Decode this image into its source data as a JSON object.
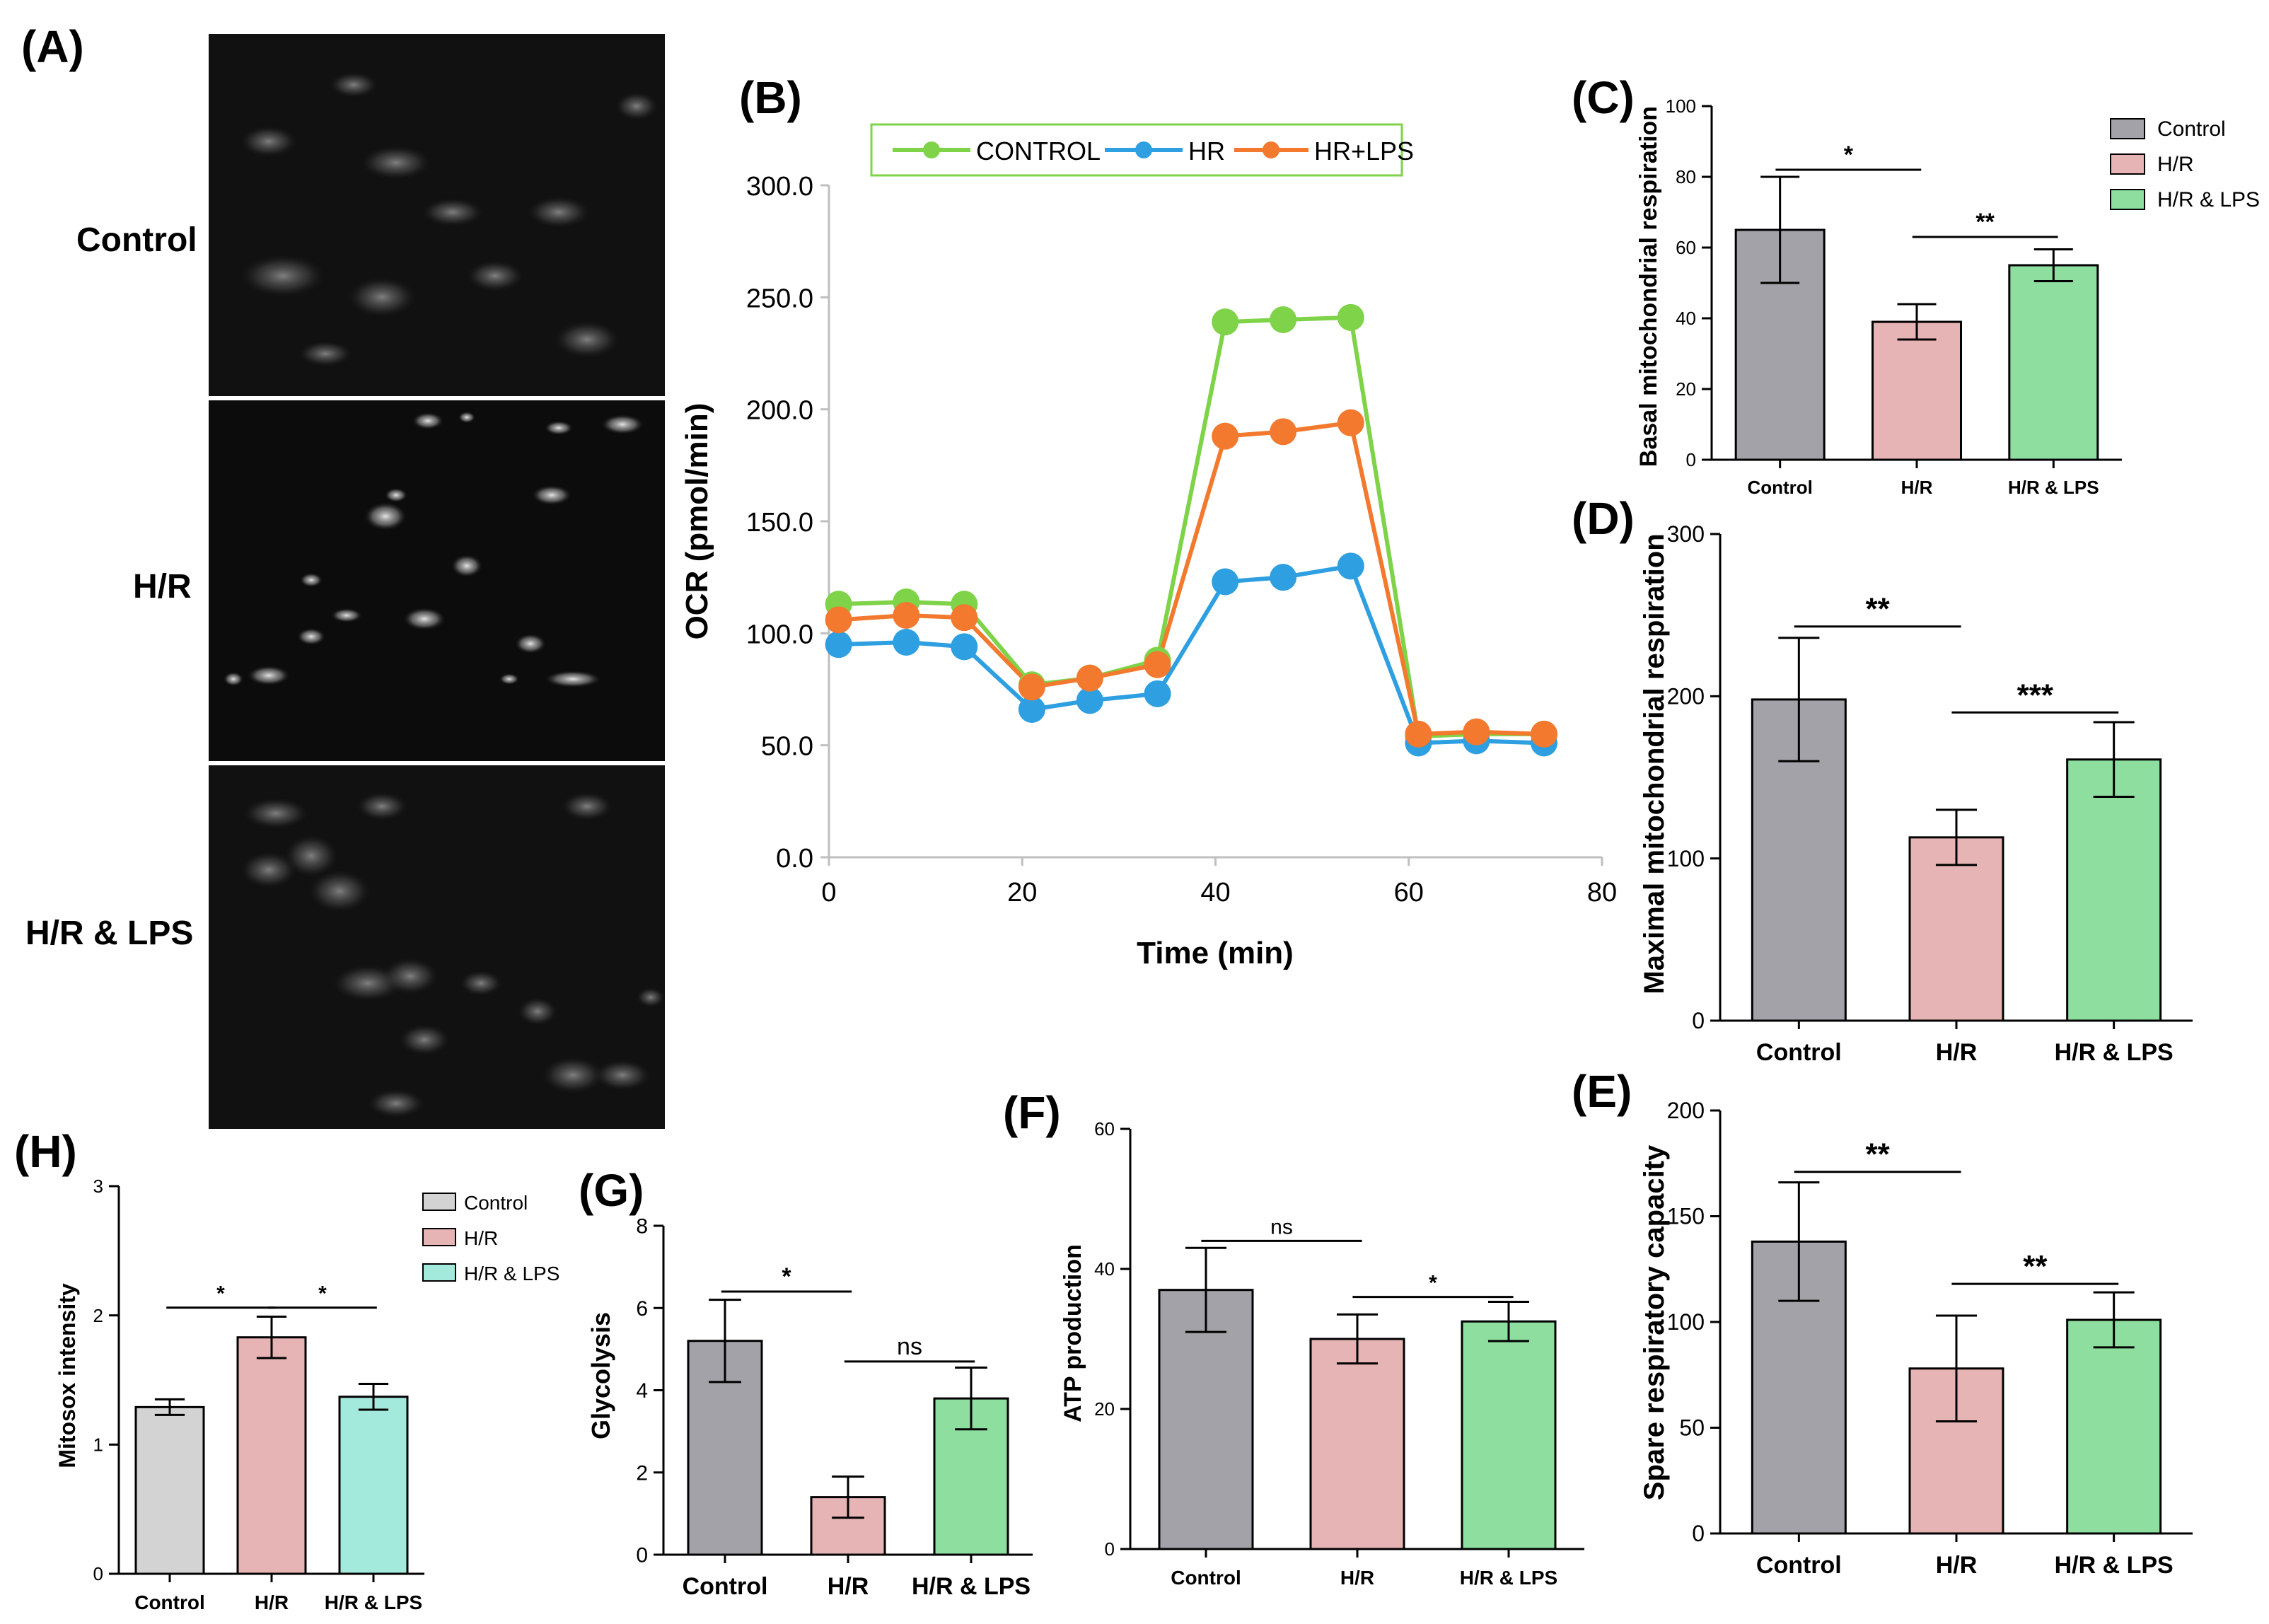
{
  "panels": {
    "a": {
      "letter": "(A)",
      "row_labels": [
        "Control",
        "H/R",
        "H/R & LPS"
      ],
      "image_desc": [
        "fluorescence micrograph - control cells",
        "fluorescence micrograph - H/R cells",
        "fluorescence micrograph - H/R & LPS cells"
      ]
    }
  },
  "chart_data": [
    {
      "id": "B",
      "letter": "(B)",
      "type": "line",
      "xlabel": "Time (min)",
      "ylabel": "OCR (pmol/min)",
      "xlim": [
        0,
        80
      ],
      "ylim": [
        0,
        300
      ],
      "xticks": [
        "0",
        "20",
        "40",
        "60",
        "80"
      ],
      "yticks": [
        "0.0",
        "50.0",
        "100.0",
        "150.0",
        "200.0",
        "250.0",
        "300.0"
      ],
      "x": [
        1,
        8,
        14,
        21,
        27,
        34,
        41,
        47,
        54,
        61,
        67,
        74
      ],
      "series": [
        {
          "name": "CONTROL",
          "color": "#7ed348",
          "values": [
            113,
            114,
            113,
            77,
            80,
            88,
            239,
            240,
            241,
            54,
            55,
            55
          ]
        },
        {
          "name": "HR",
          "color": "#2e9fe0",
          "values": [
            95,
            96,
            94,
            66,
            70,
            73,
            123,
            125,
            130,
            51,
            52,
            51
          ]
        },
        {
          "name": "HR+LPS",
          "color": "#f2792e",
          "values": [
            106,
            108,
            107,
            76,
            80,
            86,
            188,
            190,
            194,
            55,
            56,
            55
          ]
        }
      ]
    },
    {
      "id": "C",
      "letter": "(C)",
      "type": "bar",
      "ylabel": "Basal mitochondrial respiration",
      "ylim": [
        0,
        100
      ],
      "yticks": [
        "0",
        "20",
        "40",
        "60",
        "80",
        "100"
      ],
      "categories": [
        "Control",
        "H/R",
        "H/R & LPS"
      ],
      "values": [
        65,
        39,
        55
      ],
      "errors": [
        15,
        5,
        4.5
      ],
      "colors": [
        "#a3a2a8",
        "#e6b4b4",
        "#8ede9f"
      ],
      "legend": [
        "Control",
        "H/R",
        "H/R & LPS"
      ],
      "sig": [
        {
          "from": 0,
          "to": 1,
          "y": 82,
          "label": "*"
        },
        {
          "from": 1,
          "to": 2,
          "y": 63,
          "label": "**"
        }
      ]
    },
    {
      "id": "D",
      "letter": "(D)",
      "type": "bar",
      "ylabel": "Maximal mitochondrial respiration",
      "ylim": [
        0,
        300
      ],
      "yticks": [
        "0",
        "100",
        "200",
        "300"
      ],
      "categories": [
        "Control",
        "H/R",
        "H/R & LPS"
      ],
      "values": [
        198,
        113,
        161
      ],
      "errors": [
        38,
        17,
        23
      ],
      "colors": [
        "#a3a2a8",
        "#e6b4b4",
        "#8ede9f"
      ],
      "sig": [
        {
          "from": 0,
          "to": 1,
          "y": 243,
          "label": "**"
        },
        {
          "from": 1,
          "to": 2,
          "y": 190,
          "label": "***"
        }
      ]
    },
    {
      "id": "E",
      "letter": "(E)",
      "type": "bar",
      "ylabel": "Spare respiratory capacity",
      "ylim": [
        0,
        200
      ],
      "yticks": [
        "0",
        "50",
        "100",
        "150",
        "200"
      ],
      "categories": [
        "Control",
        "H/R",
        "H/R & LPS"
      ],
      "values": [
        138,
        78,
        101
      ],
      "errors": [
        28,
        25,
        13
      ],
      "colors": [
        "#a3a2a8",
        "#e6b4b4",
        "#8ede9f"
      ],
      "sig": [
        {
          "from": 0,
          "to": 1,
          "y": 171,
          "label": "**"
        },
        {
          "from": 1,
          "to": 2,
          "y": 118,
          "label": "**"
        }
      ]
    },
    {
      "id": "F",
      "letter": "(F)",
      "type": "bar",
      "ylabel": "ATP production",
      "ylim": [
        0,
        60
      ],
      "yticks": [
        "0",
        "20",
        "40",
        "60"
      ],
      "categories": [
        "Control",
        "H/R",
        "H/R & LPS"
      ],
      "values": [
        37,
        30,
        32.5
      ],
      "errors": [
        6,
        3.5,
        2.8
      ],
      "colors": [
        "#a3a2a8",
        "#e6b4b4",
        "#8ede9f"
      ],
      "sig": [
        {
          "from": 0,
          "to": 1,
          "y": 44,
          "label": "ns"
        },
        {
          "from": 1,
          "to": 2,
          "y": 36,
          "label": "*"
        }
      ]
    },
    {
      "id": "G",
      "letter": "(G)",
      "type": "bar",
      "ylabel": "Glycolysis",
      "ylim": [
        0,
        8
      ],
      "yticks": [
        "0",
        "2",
        "4",
        "6",
        "8"
      ],
      "categories": [
        "Control",
        "H/R",
        "H/R & LPS"
      ],
      "values": [
        5.2,
        1.4,
        3.8
      ],
      "errors": [
        1.0,
        0.5,
        0.75
      ],
      "colors": [
        "#a3a2a8",
        "#e6b4b4",
        "#8ede9f"
      ],
      "sig": [
        {
          "from": 0,
          "to": 1,
          "y": 6.4,
          "label": "*"
        },
        {
          "from": 1,
          "to": 2,
          "y": 4.7,
          "label": "ns"
        }
      ]
    },
    {
      "id": "H",
      "letter": "(H)",
      "type": "bar",
      "ylabel": "Mitosox intensity",
      "ylim": [
        0,
        3
      ],
      "yticks": [
        "0",
        "1",
        "2",
        "3"
      ],
      "categories": [
        "Control",
        "H/R",
        "H/R & LPS"
      ],
      "values": [
        1.29,
        1.83,
        1.37
      ],
      "errors": [
        0.06,
        0.16,
        0.1
      ],
      "colors": [
        "#d3d3d3",
        "#e6b4b4",
        "#a4eadc"
      ],
      "legend": [
        "Control",
        "H/R",
        "H/R & LPS"
      ],
      "sig": [
        {
          "from": 0,
          "to": 1,
          "y": 2.06,
          "label": "*"
        },
        {
          "from": 1,
          "to": 2,
          "y": 2.06,
          "label": "*"
        }
      ]
    }
  ]
}
